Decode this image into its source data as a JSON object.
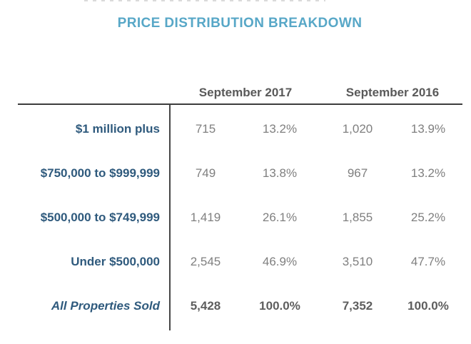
{
  "title": "PRICE DISTRIBUTION BREAKDOWN",
  "column_headers": {
    "col_2017": "September 2017",
    "col_2016": "September 2016"
  },
  "rows": [
    {
      "label": "$1 million plus",
      "count_2017": "715",
      "pct_2017": "13.2%",
      "count_2016": "1,020",
      "pct_2016": "13.9%"
    },
    {
      "label": "$750,000 to $999,999",
      "count_2017": "749",
      "pct_2017": "13.8%",
      "count_2016": "967",
      "pct_2016": "13.2%"
    },
    {
      "label": "$500,000 to $749,999",
      "count_2017": "1,419",
      "pct_2017": "26.1%",
      "count_2016": "1,855",
      "pct_2016": "25.2%"
    },
    {
      "label": "Under $500,000",
      "count_2017": "2,545",
      "pct_2017": "46.9%",
      "count_2016": "3,510",
      "pct_2016": "47.7%"
    },
    {
      "label": "All Properties Sold",
      "count_2017": "5,428",
      "pct_2017": "100.0%",
      "count_2016": "7,352",
      "pct_2016": "100.0%"
    }
  ],
  "colors": {
    "title_blue": "#57a7c7",
    "label_navy": "#2f5a7d",
    "data_gray": "#7f7f7f",
    "header_gray": "#595959",
    "rule_dark": "#3d3d3d"
  },
  "chart_data": {
    "type": "table",
    "title": "PRICE DISTRIBUTION BREAKDOWN",
    "column_groups": [
      "September 2017",
      "September 2016"
    ],
    "categories": [
      "$1 million plus",
      "$750,000 to $999,999",
      "$500,000 to $749,999",
      "Under $500,000",
      "All Properties Sold"
    ],
    "series": [
      {
        "name": "September 2017 count",
        "values": [
          715,
          749,
          1419,
          2545,
          5428
        ]
      },
      {
        "name": "September 2017 percent",
        "values": [
          13.2,
          13.8,
          26.1,
          46.9,
          100.0
        ]
      },
      {
        "name": "September 2016 count",
        "values": [
          1020,
          967,
          1855,
          3510,
          7352
        ]
      },
      {
        "name": "September 2016 percent",
        "values": [
          13.9,
          13.2,
          25.2,
          47.7,
          100.0
        ]
      }
    ]
  }
}
